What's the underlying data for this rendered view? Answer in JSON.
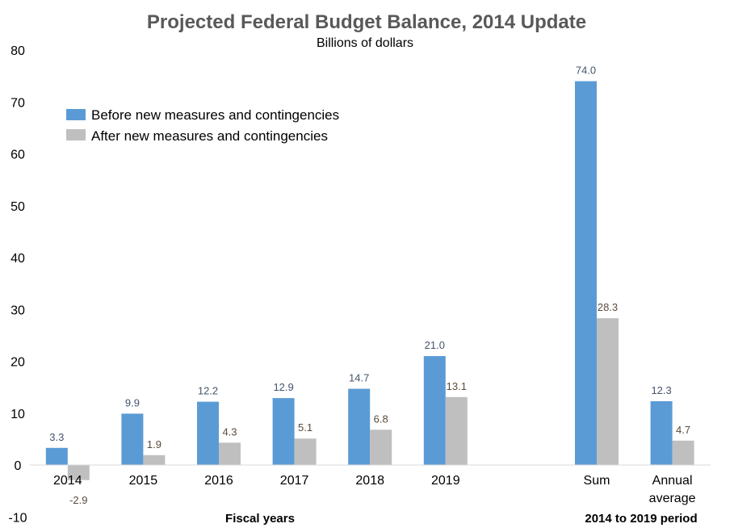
{
  "chart_data": {
    "type": "bar",
    "title": "Projected Federal Budget Balance, 2014 Update",
    "subtitle": "Billions of dollars",
    "categories": [
      "2014",
      "2015",
      "2016",
      "2017",
      "2018",
      "2019",
      "",
      "Sum",
      "Annual average"
    ],
    "category_lines": [
      [
        "2014"
      ],
      [
        "2015"
      ],
      [
        "2016"
      ],
      [
        "2017"
      ],
      [
        "2018"
      ],
      [
        "2019"
      ],
      [],
      [
        "Sum"
      ],
      [
        "Annual",
        "average"
      ]
    ],
    "series": [
      {
        "name": "Before new measures and contingencies",
        "color": "#5B9BD5",
        "label_color": "#44546A",
        "values": [
          3.3,
          9.9,
          12.2,
          12.9,
          14.7,
          21.0,
          null,
          74.0,
          12.3
        ],
        "labels": [
          "3.3",
          "9.9",
          "12.2",
          "12.9",
          "14.7",
          "21.0",
          null,
          "74.0",
          "12.3"
        ]
      },
      {
        "name": "After new measures and contingencies",
        "color": "#BFBFBF",
        "label_color": "#5A4A3A",
        "values": [
          -2.9,
          1.9,
          4.3,
          5.1,
          6.8,
          13.1,
          null,
          28.3,
          4.7
        ],
        "labels": [
          "-2.9",
          "1.9",
          "4.3",
          "5.1",
          "6.8",
          "13.1",
          null,
          "28.3",
          "4.7"
        ]
      }
    ],
    "ylim": [
      -10,
      80
    ],
    "yticks": [
      "-10",
      "0",
      "10",
      "20",
      "30",
      "40",
      "50",
      "60",
      "70",
      "80"
    ],
    "group_labels": [
      "Fiscal years",
      "2014 to 2019 period"
    ],
    "grid": false,
    "legend_position": "top-left"
  }
}
